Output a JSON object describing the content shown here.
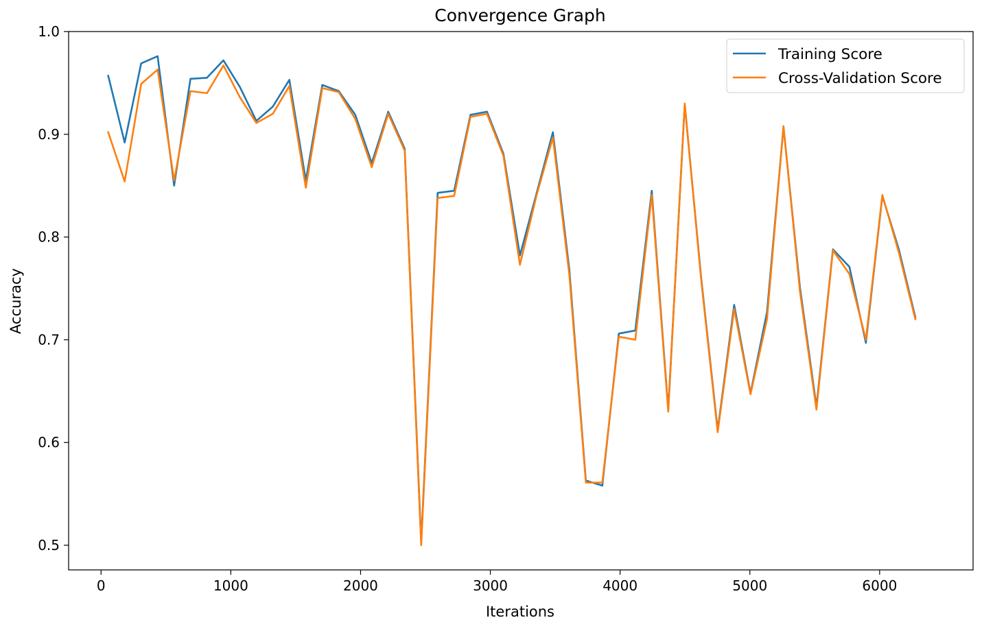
{
  "chart_data": {
    "type": "line",
    "title": "Convergence Graph",
    "xlabel": "Iterations",
    "ylabel": "Accuracy",
    "xlim": [
      -250,
      6720
    ],
    "ylim": [
      0.476,
      1.0
    ],
    "xticks": [
      0,
      1000,
      2000,
      3000,
      4000,
      5000,
      6000
    ],
    "yticks": [
      0.5,
      0.6,
      0.7,
      0.8,
      0.9,
      1.0
    ],
    "xtick_labels": [
      "0",
      "1000",
      "2000",
      "3000",
      "4000",
      "5000",
      "6000"
    ],
    "ytick_labels": [
      "0.5",
      "0.6",
      "0.7",
      "0.8",
      "0.9",
      "1.0"
    ],
    "grid": false,
    "legend_position": "top-right",
    "x": [
      55,
      182,
      309,
      436,
      563,
      689,
      816,
      943,
      1070,
      1197,
      1324,
      1451,
      1578,
      1705,
      1832,
      1959,
      2086,
      2213,
      2340,
      2467,
      2594,
      2721,
      2847,
      2974,
      3101,
      3228,
      3355,
      3482,
      3609,
      3736,
      3863,
      3990,
      4117,
      4244,
      4371,
      4498,
      4625,
      4752,
      4879,
      5005,
      5132,
      5259,
      5386,
      5513,
      5640,
      5767,
      5894,
      6021,
      6148,
      6275
    ],
    "series": [
      {
        "name": "Training Score",
        "color": "#1f77b4",
        "values": [
          0.957,
          0.892,
          0.969,
          0.976,
          0.85,
          0.954,
          0.955,
          0.972,
          0.946,
          0.913,
          0.927,
          0.953,
          0.855,
          0.948,
          0.942,
          0.919,
          0.872,
          0.922,
          0.886,
          0.503,
          0.843,
          0.845,
          0.919,
          0.922,
          0.881,
          0.782,
          0.842,
          0.902,
          0.768,
          0.563,
          0.558,
          0.706,
          0.709,
          0.845,
          0.632,
          0.929,
          0.76,
          0.612,
          0.734,
          0.648,
          0.727,
          0.907,
          0.751,
          0.635,
          0.788,
          0.771,
          0.697,
          0.84,
          0.788,
          0.722
        ]
      },
      {
        "name": "Cross-Validation Score",
        "color": "#ff7f0e",
        "values": [
          0.902,
          0.854,
          0.949,
          0.963,
          0.855,
          0.942,
          0.94,
          0.967,
          0.936,
          0.911,
          0.92,
          0.947,
          0.848,
          0.945,
          0.941,
          0.915,
          0.868,
          0.92,
          0.884,
          0.5,
          0.838,
          0.84,
          0.917,
          0.92,
          0.879,
          0.773,
          0.84,
          0.897,
          0.763,
          0.561,
          0.561,
          0.703,
          0.7,
          0.841,
          0.63,
          0.93,
          0.758,
          0.61,
          0.73,
          0.647,
          0.72,
          0.908,
          0.747,
          0.632,
          0.787,
          0.764,
          0.7,
          0.841,
          0.785,
          0.72
        ]
      }
    ]
  }
}
